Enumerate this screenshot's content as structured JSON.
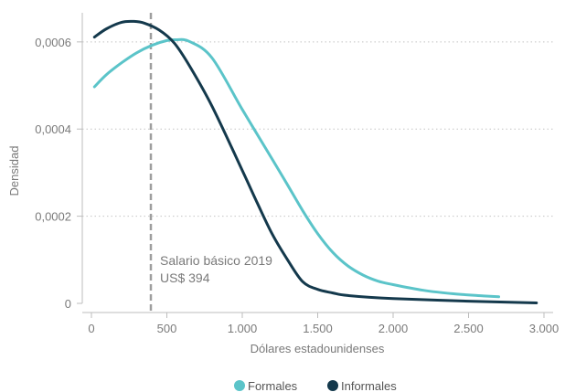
{
  "chart_data": {
    "type": "line",
    "xlabel": "Dólares estadounidenses",
    "ylabel": "Densidad",
    "xlim": [
      0,
      3000
    ],
    "ylim": [
      0,
      0.00065
    ],
    "x_ticks": [
      {
        "value": 0,
        "label": "0"
      },
      {
        "value": 500,
        "label": "500"
      },
      {
        "value": 1000,
        "label": "1.000"
      },
      {
        "value": 1500,
        "label": "1.500"
      },
      {
        "value": 2000,
        "label": "2.000"
      },
      {
        "value": 2500,
        "label": "2.500"
      },
      {
        "value": 3000,
        "label": "3.000"
      }
    ],
    "y_ticks": [
      {
        "value": 0,
        "label": "0"
      },
      {
        "value": 0.0002,
        "label": "0,0002"
      },
      {
        "value": 0.0004,
        "label": "0,0004"
      },
      {
        "value": 0.0006,
        "label": "0,0006"
      }
    ],
    "grid": "horizontal-dotted",
    "legend_position": "bottom-center",
    "reference_line": {
      "x": 394,
      "label_line1": "Salario básico 2019",
      "label_line2": "US$ 394"
    },
    "series": [
      {
        "name": "Formales",
        "color": "#5bc4c9",
        "x": [
          20,
          100,
          200,
          300,
          400,
          500,
          560,
          650,
          800,
          1000,
          1200,
          1300,
          1400,
          1500,
          1600,
          1700,
          1800,
          1900,
          2000,
          2200,
          2400,
          2600,
          2700
        ],
        "y": [
          0.000497,
          0.000525,
          0.000552,
          0.000575,
          0.000592,
          0.000603,
          0.000605,
          0.000601,
          0.000563,
          0.000445,
          0.00033,
          0.000272,
          0.000213,
          0.00016,
          0.000117,
          8.6e-05,
          6.5e-05,
          5.1e-05,
          4.3e-05,
          3e-05,
          2.2e-05,
          1.7e-05,
          1.5e-05
        ]
      },
      {
        "name": "Informales",
        "color": "#14394c",
        "x": [
          20,
          100,
          200,
          280,
          350,
          450,
          550,
          650,
          800,
          1000,
          1100,
          1200,
          1300,
          1400,
          1500,
          1600,
          1700,
          2000,
          2500,
          2950
        ],
        "y": [
          0.000611,
          0.00063,
          0.000645,
          0.000647,
          0.000643,
          0.000627,
          0.000597,
          0.000545,
          0.000452,
          0.000305,
          0.00023,
          0.000158,
          0.0001,
          5e-05,
          3.2e-05,
          2.4e-05,
          1.8e-05,
          1.1e-05,
          5e-06,
          1e-06
        ]
      }
    ]
  }
}
